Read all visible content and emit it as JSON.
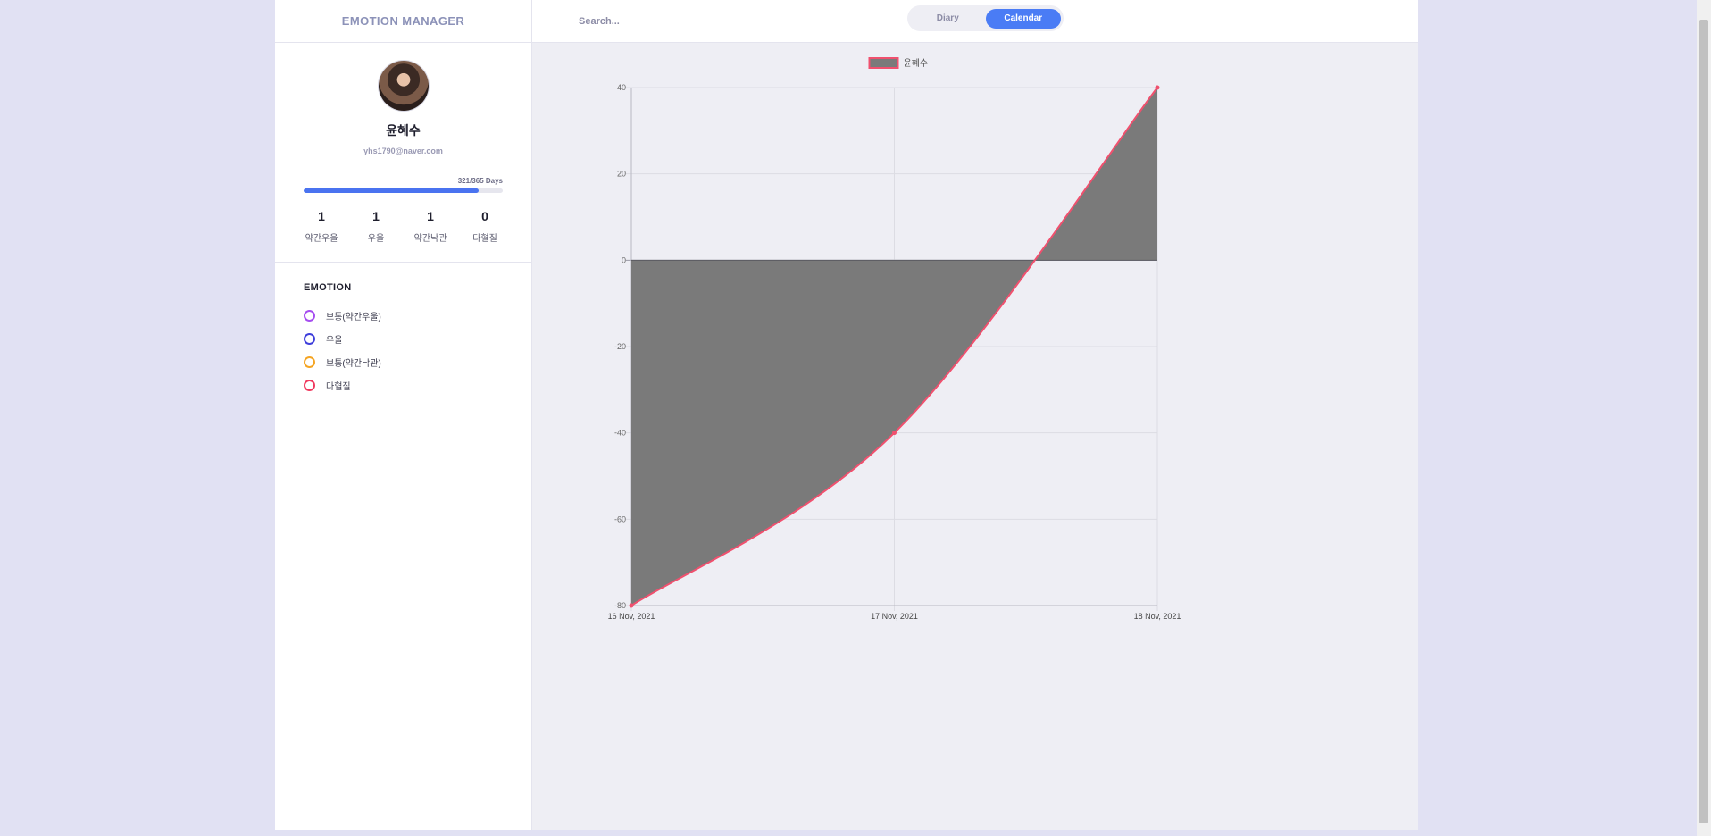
{
  "app": {
    "brand": "EMOTION MANAGER"
  },
  "profile": {
    "name": "윤혜수",
    "email": "yhs1790@naver.com",
    "progress_label": "321/365 Days",
    "progress_fraction": 0.8795
  },
  "stats": [
    {
      "value": "1",
      "label": "약간우울"
    },
    {
      "value": "1",
      "label": "우울"
    },
    {
      "value": "1",
      "label": "약간낙관"
    },
    {
      "value": "0",
      "label": "다혈질"
    }
  ],
  "emotion": {
    "title": "EMOTION",
    "items": [
      {
        "label": "보통(약간우울)",
        "color": "#a64ef0"
      },
      {
        "label": "우울",
        "color": "#3f3fdb"
      },
      {
        "label": "보통(약간낙관)",
        "color": "#f5a524"
      },
      {
        "label": "다혈질",
        "color": "#f03a5f"
      }
    ]
  },
  "topbar": {
    "search_placeholder": "Search...",
    "tabs": [
      {
        "label": "Diary",
        "active": false
      },
      {
        "label": "Calendar",
        "active": true
      }
    ]
  },
  "chart_data": {
    "type": "area",
    "categories": [
      "16 Nov, 2021",
      "17 Nov, 2021",
      "18 Nov, 2021"
    ],
    "series": [
      {
        "name": "윤혜수",
        "values": [
          -80,
          -40,
          40
        ],
        "line_color": "#f0506e",
        "fill_color": "#7a7a7a"
      }
    ],
    "ylim": [
      -80,
      40
    ],
    "yticks": [
      40,
      20,
      0,
      -20,
      -40,
      -60,
      -80
    ],
    "grid": true,
    "legend": "top"
  }
}
